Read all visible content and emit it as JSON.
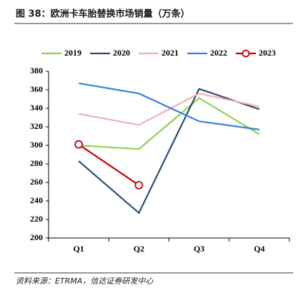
{
  "chart_data": {
    "type": "line",
    "title": "图 38：欧洲卡车胎替换市场销量（万条）",
    "source": "资料来源：ETRMA，信达证券研发中心",
    "categories": [
      "Q1",
      "Q2",
      "Q3",
      "Q4"
    ],
    "series": [
      {
        "name": "2019",
        "color": "#92d050",
        "values": [
          300,
          296,
          351,
          312
        ]
      },
      {
        "name": "2020",
        "color": "#2e4a78",
        "values": [
          283,
          227,
          361,
          339
        ]
      },
      {
        "name": "2021",
        "color": "#f4b0b0",
        "values": [
          334,
          322,
          356,
          342
        ]
      },
      {
        "name": "2022",
        "color": "#3a7de0",
        "values": [
          367,
          356,
          326,
          317
        ]
      },
      {
        "name": "2023",
        "color": "#c00000",
        "values": [
          301,
          257,
          null,
          null
        ],
        "marker": "circle"
      }
    ],
    "ylim": [
      200,
      380
    ],
    "yticks": [
      200,
      220,
      240,
      260,
      280,
      300,
      320,
      340,
      360,
      380
    ],
    "legend": "top"
  }
}
